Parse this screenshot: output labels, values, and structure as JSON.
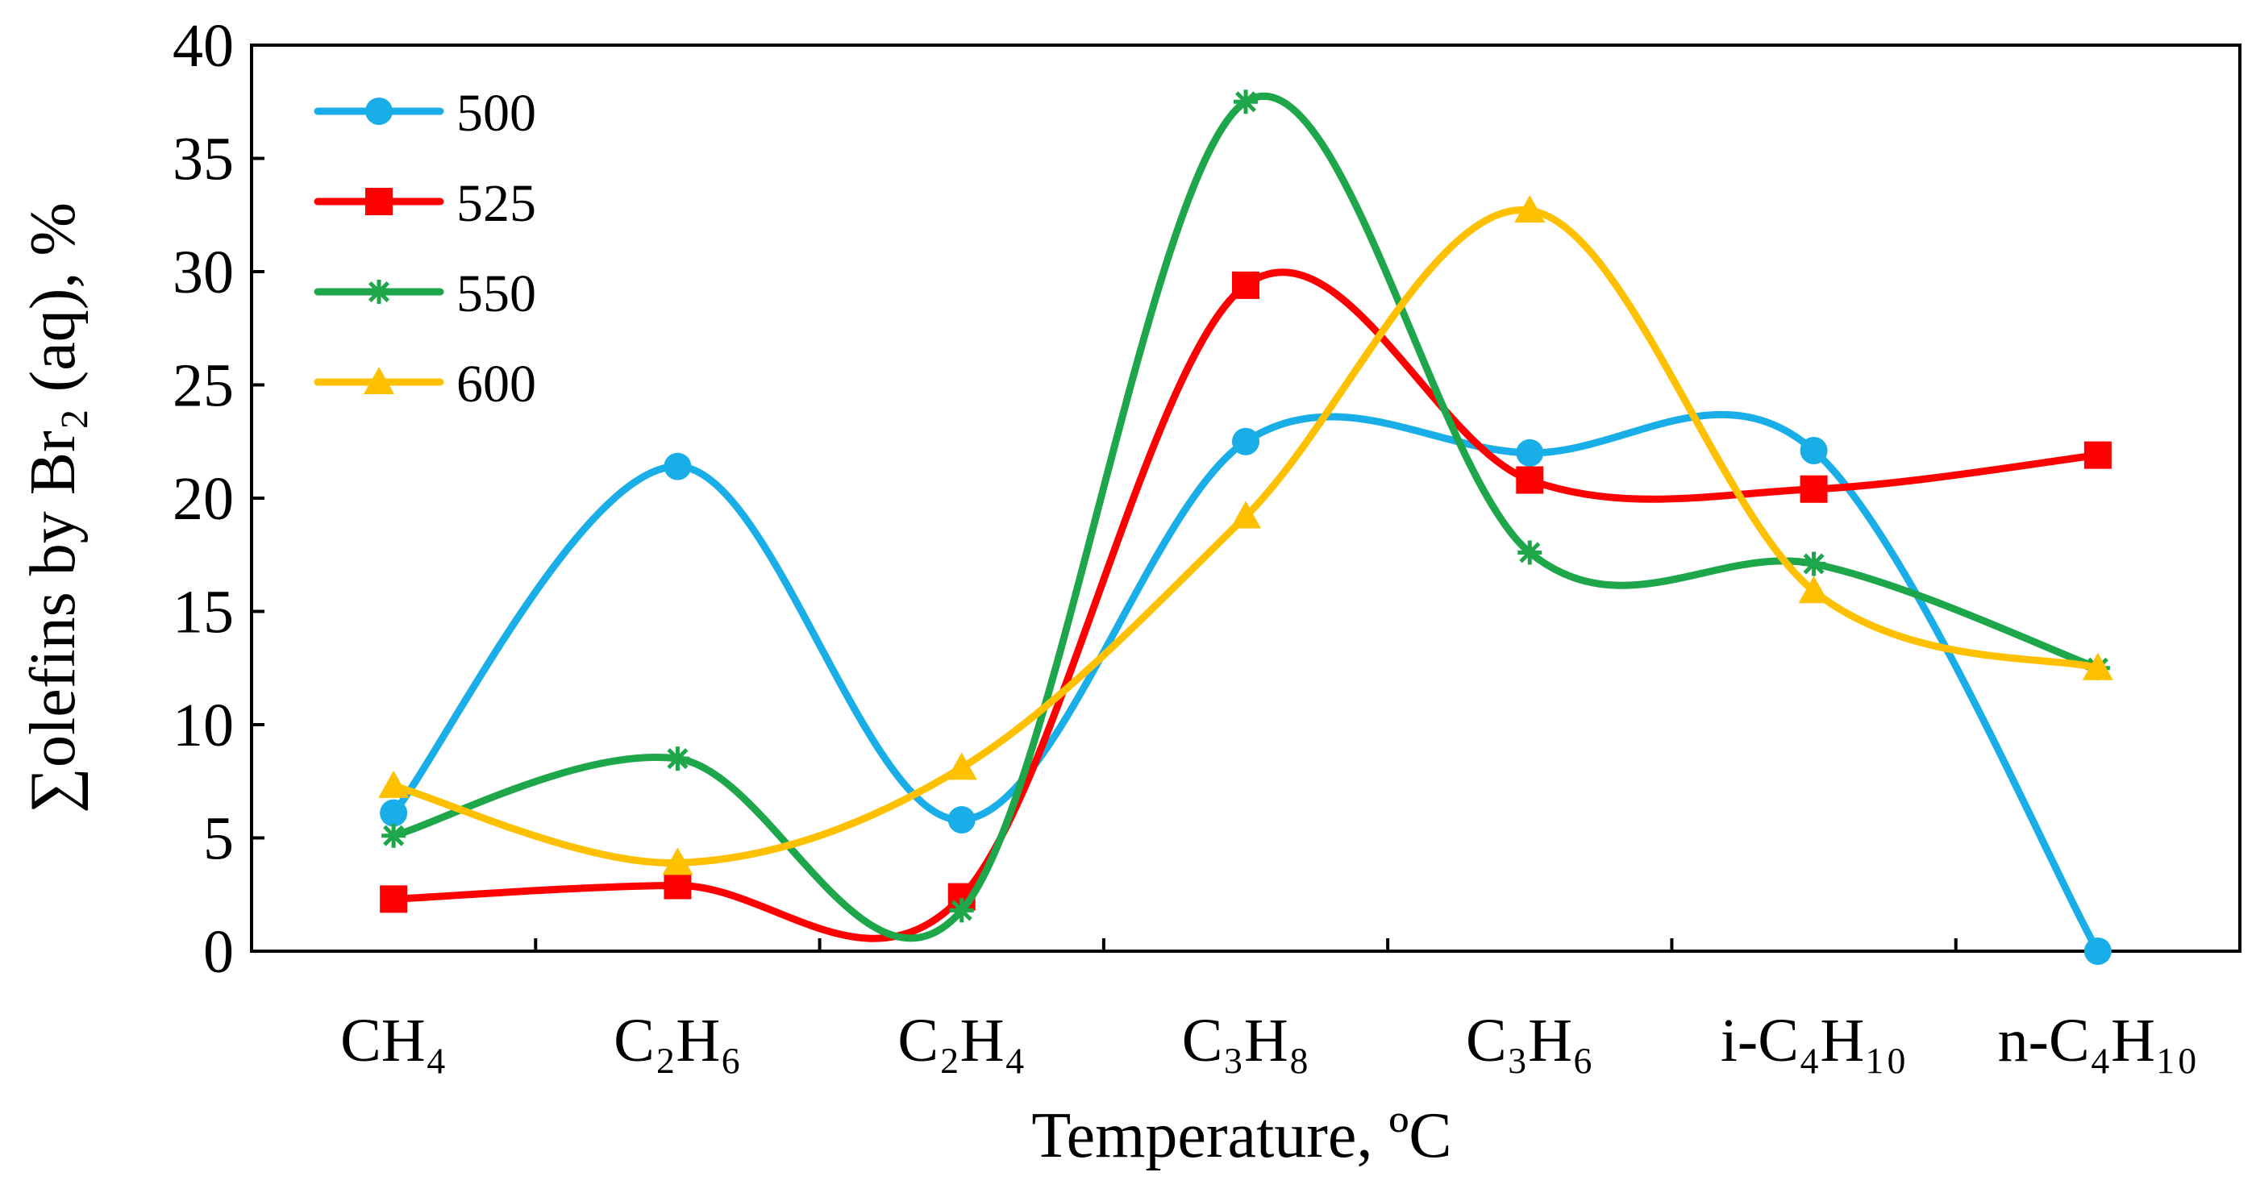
{
  "chart_data": {
    "type": "line",
    "categories": [
      "CH₄",
      "C₂H₆",
      "C₂H₄",
      "C₃H₈",
      "C₃H₆",
      "i-C₄H₁₀",
      "n-C₄H₁₀"
    ],
    "xlabel": "Temperature, ºC",
    "ylabel": "∑olefins by Br₂ (aq), %",
    "ylim": [
      0,
      40
    ],
    "yticks": [
      "0",
      "5",
      "10",
      "15",
      "20",
      "25",
      "30",
      "35",
      "40"
    ],
    "ytick_values": [
      0,
      5,
      10,
      15,
      20,
      25,
      30,
      35,
      40
    ],
    "grid": false,
    "smooth": true,
    "legend_position": "top-left",
    "series": [
      {
        "name": "500",
        "color": "#1aaee8",
        "marker": "circle",
        "values": [
          6.1,
          21.4,
          5.8,
          22.5,
          22.0,
          22.1,
          0.0
        ]
      },
      {
        "name": "525",
        "color": "#ff0000",
        "marker": "square",
        "values": [
          2.3,
          2.9,
          2.4,
          29.4,
          20.8,
          20.4,
          21.9
        ]
      },
      {
        "name": "550",
        "color": "#1ea64b",
        "marker": "asterisk",
        "values": [
          5.1,
          8.5,
          1.8,
          37.5,
          17.6,
          17.1,
          12.5
        ]
      },
      {
        "name": "600",
        "color": "#ffc000",
        "marker": "triangle",
        "values": [
          7.3,
          3.9,
          8.1,
          19.2,
          32.7,
          15.9,
          12.5
        ]
      }
    ]
  }
}
